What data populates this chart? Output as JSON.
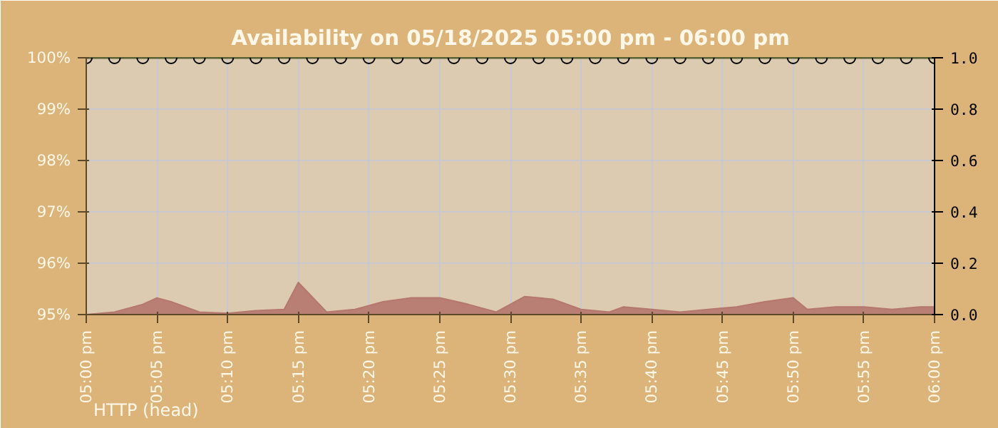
{
  "chart_data": {
    "type": "line",
    "title": "Availability on 05/18/2025 05:00 pm - 06:00 pm",
    "xlim": [
      "2025-05-18T17:00",
      "2025-05-18T18:00"
    ],
    "xticks": [
      {
        "value": "2025-05-18T17:00",
        "label": "05:00 pm"
      },
      {
        "value": "2025-05-18T17:05",
        "label": "05:05 pm"
      },
      {
        "value": "2025-05-18T17:10",
        "label": "05:10 pm"
      },
      {
        "value": "2025-05-18T17:15",
        "label": "05:15 pm"
      },
      {
        "value": "2025-05-18T17:20",
        "label": "05:20 pm"
      },
      {
        "value": "2025-05-18T17:25",
        "label": "05:25 pm"
      },
      {
        "value": "2025-05-18T17:30",
        "label": "05:30 pm"
      },
      {
        "value": "2025-05-18T17:35",
        "label": "05:35 pm"
      },
      {
        "value": "2025-05-18T17:40",
        "label": "05:40 pm"
      },
      {
        "value": "2025-05-18T17:45",
        "label": "05:45 pm"
      },
      {
        "value": "2025-05-18T17:50",
        "label": "05:50 pm"
      },
      {
        "value": "2025-05-18T17:55",
        "label": "05:55 pm"
      },
      {
        "value": "2025-05-18T18:00",
        "label": "06:00 pm"
      }
    ],
    "ylim": [
      95,
      100
    ],
    "yticks": [
      {
        "value": 95,
        "label": "95%"
      },
      {
        "value": 96,
        "label": "96%"
      },
      {
        "value": 97,
        "label": "97%"
      },
      {
        "value": 98,
        "label": "98%"
      },
      {
        "value": 99,
        "label": "99%"
      },
      {
        "value": 100,
        "label": "100%"
      }
    ],
    "y2lim": [
      0,
      1
    ],
    "y2ticks": [
      {
        "value": 0,
        "label": "0.0"
      },
      {
        "value": 0.2,
        "label": "0.2"
      },
      {
        "value": 0.4,
        "label": "0.4"
      },
      {
        "value": 0.6,
        "label": "0.6"
      },
      {
        "value": 0.8,
        "label": "0.8"
      },
      {
        "value": 1,
        "label": "1.0"
      }
    ],
    "grid": true,
    "series": [
      {
        "type": "area",
        "axis": "y2",
        "color": "#b5776e",
        "x": [
          "2025-05-18T17:00",
          "2025-05-18T17:02",
          "2025-05-18T17:04",
          "2025-05-18T17:05",
          "2025-05-18T17:06",
          "2025-05-18T17:08",
          "2025-05-18T17:10",
          "2025-05-18T17:12",
          "2025-05-18T17:14",
          "2025-05-18T17:15",
          "2025-05-18T17:17",
          "2025-05-18T17:19",
          "2025-05-18T17:21",
          "2025-05-18T17:23",
          "2025-05-18T17:25",
          "2025-05-18T17:27",
          "2025-05-18T17:29",
          "2025-05-18T17:31",
          "2025-05-18T17:33",
          "2025-05-18T17:35",
          "2025-05-18T17:37",
          "2025-05-18T17:38",
          "2025-05-18T17:40",
          "2025-05-18T17:42",
          "2025-05-18T17:44",
          "2025-05-18T17:46",
          "2025-05-18T17:48",
          "2025-05-18T17:50",
          "2025-05-18T17:51",
          "2025-05-18T17:53",
          "2025-05-18T17:55",
          "2025-05-18T17:57",
          "2025-05-18T17:59",
          "2025-05-18T18:00"
        ],
        "values": [
          0.0,
          0.01,
          0.04,
          0.065,
          0.05,
          0.01,
          0.005,
          0.015,
          0.02,
          0.125,
          0.01,
          0.02,
          0.05,
          0.065,
          0.065,
          0.04,
          0.01,
          0.07,
          0.06,
          0.02,
          0.01,
          0.03,
          0.02,
          0.01,
          0.02,
          0.03,
          0.05,
          0.065,
          0.02,
          0.03,
          0.03,
          0.02,
          0.03,
          0.03
        ]
      },
      {
        "marker": "circle",
        "color": "#5a6234",
        "x": [
          "2025-05-18T17:00",
          "2025-05-18T17:02",
          "2025-05-18T17:04",
          "2025-05-18T17:06",
          "2025-05-18T17:08",
          "2025-05-18T17:10",
          "2025-05-18T17:12",
          "2025-05-18T17:14",
          "2025-05-18T17:16",
          "2025-05-18T17:18",
          "2025-05-18T17:20",
          "2025-05-18T17:22",
          "2025-05-18T17:24",
          "2025-05-18T17:26",
          "2025-05-18T17:28",
          "2025-05-18T17:30",
          "2025-05-18T17:32",
          "2025-05-18T17:34",
          "2025-05-18T17:36",
          "2025-05-18T17:38",
          "2025-05-18T17:40",
          "2025-05-18T17:42",
          "2025-05-18T17:44",
          "2025-05-18T17:46",
          "2025-05-18T17:48",
          "2025-05-18T17:50",
          "2025-05-18T17:52",
          "2025-05-18T17:54",
          "2025-05-18T17:56",
          "2025-05-18T17:58",
          "2025-05-18T18:00"
        ],
        "values": [
          100,
          100,
          100,
          100,
          100,
          100,
          100,
          100,
          100,
          100,
          100,
          100,
          100,
          100,
          100,
          100,
          100,
          100,
          100,
          100,
          100,
          100,
          100,
          100,
          100,
          100,
          100,
          100,
          100,
          100,
          100
        ]
      }
    ],
    "annotations": [
      "HTTP (head)"
    ]
  }
}
